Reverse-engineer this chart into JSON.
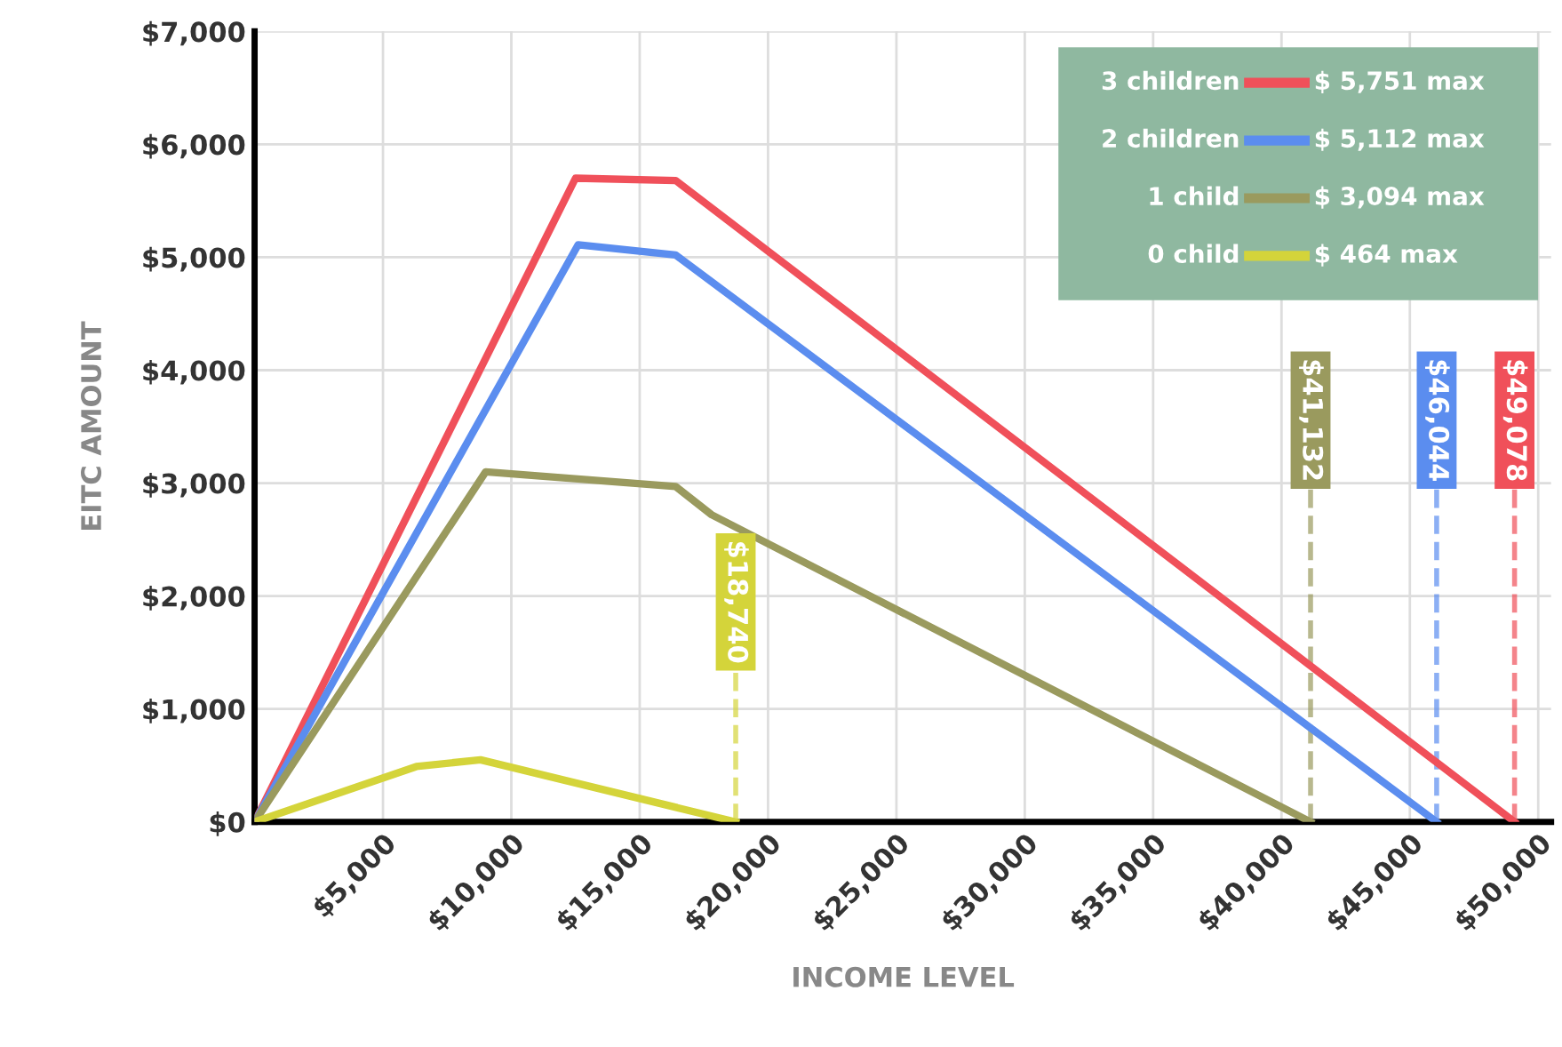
{
  "chart_data": {
    "type": "line",
    "xlabel": "INCOME LEVEL",
    "ylabel": "EITC AMOUNT",
    "xlim": [
      0,
      50500
    ],
    "ylim": [
      0,
      7000
    ],
    "xticks": [
      {
        "value": 5000,
        "label": "$5,000"
      },
      {
        "value": 10000,
        "label": "$10,000"
      },
      {
        "value": 15000,
        "label": "$15,000"
      },
      {
        "value": 20000,
        "label": "$20,000"
      },
      {
        "value": 25000,
        "label": "$25,000"
      },
      {
        "value": 30000,
        "label": "$30,000"
      },
      {
        "value": 35000,
        "label": "$35,000"
      },
      {
        "value": 40000,
        "label": "$40,000"
      },
      {
        "value": 45000,
        "label": "$45,000"
      },
      {
        "value": 50000,
        "label": "$50,000"
      }
    ],
    "yticks": [
      {
        "value": 0,
        "label": "$0"
      },
      {
        "value": 1000,
        "label": "$1,000"
      },
      {
        "value": 2000,
        "label": "$2,000"
      },
      {
        "value": 3000,
        "label": "$3,000"
      },
      {
        "value": 4000,
        "label": "$4,000"
      },
      {
        "value": 5000,
        "label": "$5,000"
      },
      {
        "value": 6000,
        "label": "$6,000"
      },
      {
        "value": 7000,
        "label": "$7,000"
      }
    ],
    "grid": true,
    "legend": "top right",
    "marker": "none",
    "line_style": "solid",
    "series": [
      {
        "name": "3 children",
        "color": "#f0505a",
        "x": [
          0,
          12500,
          16400,
          49078
        ],
        "values": [
          0,
          5700,
          5680,
          0
        ]
      },
      {
        "name": "2 children",
        "color": "#5b8def",
        "x": [
          0,
          12600,
          16400,
          46044
        ],
        "values": [
          0,
          5110,
          5020,
          0
        ]
      },
      {
        "name": "1 child",
        "color": "#9a9a5e",
        "x": [
          0,
          9000,
          16400,
          17800,
          41132
        ],
        "values": [
          0,
          3100,
          2970,
          2720,
          0
        ]
      },
      {
        "name": "0 child",
        "color": "#d4d43a",
        "x": [
          0,
          6300,
          8800,
          18740
        ],
        "values": [
          0,
          490,
          550,
          0
        ]
      }
    ],
    "annotations": [
      "$ 5,751 max",
      "$ 5,112 max",
      "$ 3,094 max",
      "$ 464 max"
    ],
    "ref_lines": [
      {
        "axis": "x",
        "value": 18740,
        "label": "$18,740",
        "color": "#d4d43a",
        "line_style": "dashed"
      },
      {
        "axis": "x",
        "value": 41132,
        "label": "$41,132",
        "color": "#9a9a5e",
        "line_style": "dashed"
      },
      {
        "axis": "x",
        "value": 46044,
        "label": "$46,044",
        "color": "#5b8def",
        "line_style": "dashed"
      },
      {
        "axis": "x",
        "value": 49078,
        "label": "$49,078",
        "color": "#f0505a",
        "line_style": "dashed"
      }
    ]
  }
}
